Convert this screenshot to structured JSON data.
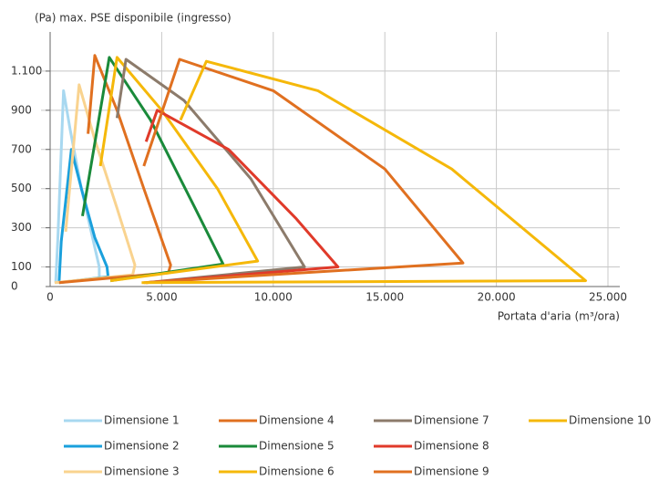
{
  "chart_data": {
    "type": "line",
    "title": "(Pa) max. PSE disponibile (ingresso)",
    "x_label": "Portata d'aria (m³/ora)",
    "xlim": [
      0,
      25000
    ],
    "xticks": [
      0,
      {
        "value": 5000,
        "label": "5.000"
      },
      {
        "value": 10000,
        "label": "10.000"
      },
      {
        "value": 15000,
        "label": "15.000"
      },
      {
        "value": 20000,
        "label": "20.000"
      },
      {
        "value": 25000,
        "label": "25.000"
      }
    ],
    "ylim": [
      0,
      1300
    ],
    "yticks": [
      0,
      100,
      300,
      500,
      700,
      900,
      {
        "value": 1100,
        "label": "1.100"
      }
    ],
    "grid": true,
    "series": [
      {
        "name": "Dimensione 1",
        "color": "#a8d8f0",
        "x": [
          250,
          350,
          600,
          900,
          1400,
          1900,
          2200,
          2200,
          250
        ],
        "values": [
          20,
          260,
          1000,
          800,
          500,
          250,
          100,
          40,
          20
        ]
      },
      {
        "name": "Dimensione 2",
        "color": "#1aa0dc",
        "x": [
          400,
          500,
          950,
          1400,
          2000,
          2550,
          2600,
          400
        ],
        "values": [
          20,
          230,
          700,
          500,
          250,
          100,
          50,
          20
        ]
      },
      {
        "name": "Dimensione 3",
        "color": "#f9d38f",
        "x": [
          700,
          1300,
          2000,
          3000,
          3800,
          3700,
          200
        ],
        "values": [
          280,
          1030,
          750,
          400,
          110,
          60,
          20
        ]
      },
      {
        "name": "Dimensione 4",
        "color": "#e07020",
        "x": [
          1700,
          2000,
          3000,
          4200,
          5400,
          5300,
          400
        ],
        "values": [
          780,
          1180,
          900,
          500,
          110,
          70,
          20
        ]
      },
      {
        "name": "Dimensione 5",
        "color": "#1a8a3a",
        "x": [
          1450,
          2650,
          4500,
          6500,
          7750,
          2700
        ],
        "values": [
          360,
          1170,
          850,
          400,
          115,
          30
        ]
      },
      {
        "name": "Dimensione 6",
        "color": "#f5b80a",
        "x": [
          2250,
          3000,
          5000,
          7500,
          9300,
          2700
        ],
        "values": [
          615,
          1170,
          900,
          500,
          130,
          30
        ]
      },
      {
        "name": "Dimensione 7",
        "color": "#8c7b6b",
        "x": [
          3000,
          3400,
          6000,
          9000,
          11400,
          4300
        ],
        "values": [
          860,
          1160,
          950,
          550,
          100,
          20
        ]
      },
      {
        "name": "Dimensione 8",
        "color": "#e03a2a",
        "x": [
          4300,
          4800,
          8000,
          11000,
          12900,
          4300
        ],
        "values": [
          740,
          900,
          700,
          350,
          100,
          20
        ]
      },
      {
        "name": "Dimensione 9",
        "color": "#e07020",
        "x": [
          4200,
          5800,
          10000,
          15000,
          18500,
          4200
        ],
        "values": [
          615,
          1160,
          1000,
          600,
          120,
          20
        ]
      },
      {
        "name": "Dimensione 10",
        "color": "#f5b80a",
        "x": [
          5840,
          7000,
          12000,
          18000,
          24000,
          4100
        ],
        "values": [
          850,
          1150,
          1000,
          600,
          30,
          20
        ]
      }
    ]
  }
}
